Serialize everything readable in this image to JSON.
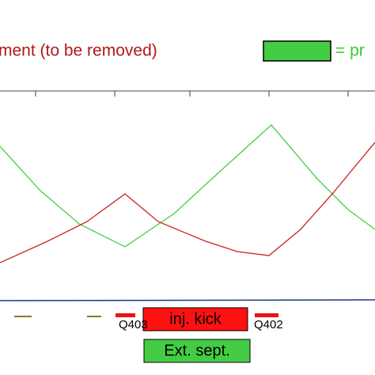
{
  "chart_data": {
    "type": "line",
    "legend_texts": [
      {
        "text": "ment (to be removed)",
        "color": "#b01818"
      },
      {
        "text": "= pr",
        "color": "#33cc33"
      }
    ],
    "legend_box_color": "#44cc44",
    "xlim": [
      0,
      474
    ],
    "ylim": [
      0,
      100
    ],
    "series": [
      {
        "color": "#44cc44",
        "x": [
          0,
          50,
          100,
          158,
          220,
          280,
          343,
          400,
          440,
          474
        ],
        "values": [
          73.6,
          52.8,
          36.6,
          25.7,
          41.5,
          62.3,
          83.8,
          58.5,
          43.4,
          34
        ]
      },
      {
        "color": "#cc2222",
        "x": [
          0,
          60,
          110,
          158,
          200,
          260,
          300,
          340,
          380,
          420,
          474
        ],
        "values": [
          18.1,
          28.3,
          37.7,
          50.9,
          37.7,
          28.3,
          23.4,
          21.5,
          34,
          50.9,
          75.5
        ]
      }
    ],
    "elements": [
      {
        "label": "Q403"
      },
      {
        "label": "Q402"
      },
      {
        "label": "inj. kick"
      },
      {
        "label": "Ext. sept."
      }
    ]
  }
}
